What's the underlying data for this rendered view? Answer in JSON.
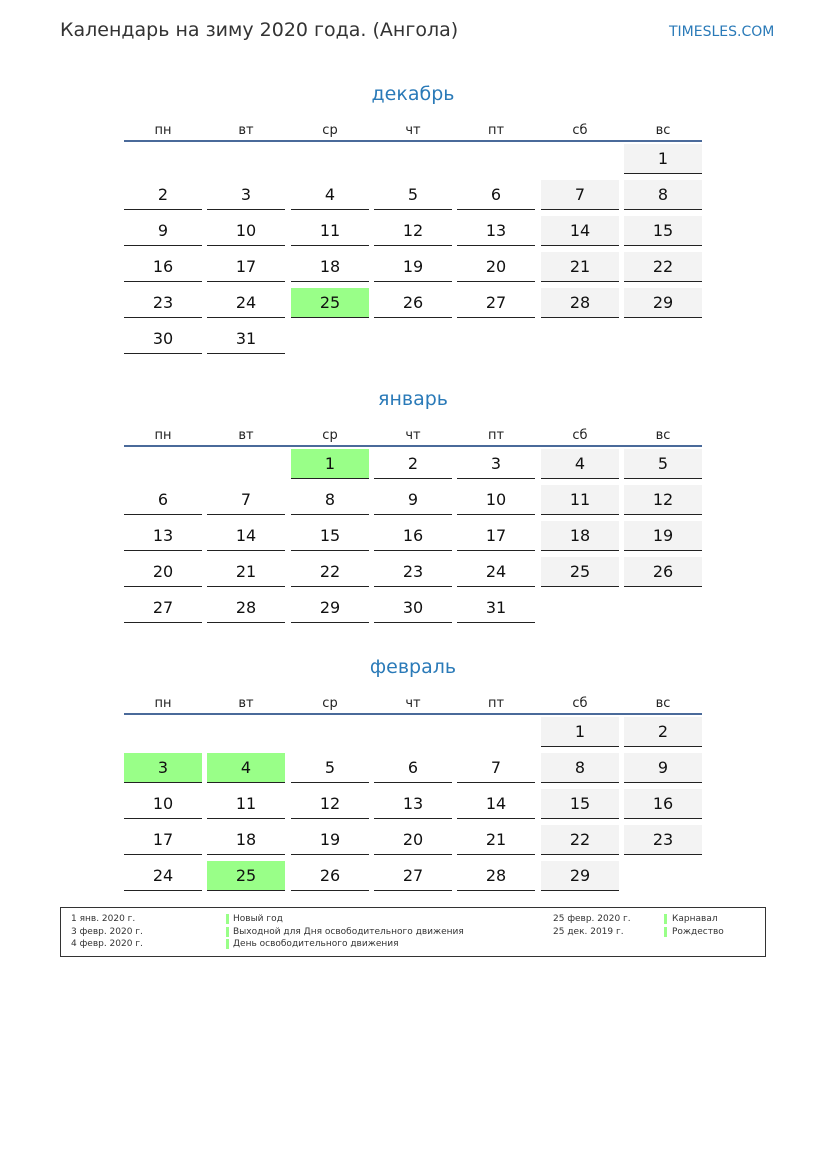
{
  "header": {
    "title": "Календарь на зиму 2020 года. (Ангола)",
    "site": "TIMESLES.COM"
  },
  "weekdays": [
    "пн",
    "вт",
    "ср",
    "чт",
    "пт",
    "сб",
    "вс"
  ],
  "colors": {
    "accent": "#2a7ab8",
    "holiday": "#99ff88",
    "weekend": "#f3f3f3",
    "rule": "#4a6a9a"
  },
  "months": [
    {
      "name": "декабрь",
      "weeks": [
        [
          null,
          null,
          null,
          null,
          null,
          null,
          1
        ],
        [
          2,
          3,
          4,
          5,
          6,
          7,
          8
        ],
        [
          9,
          10,
          11,
          12,
          13,
          14,
          15
        ],
        [
          16,
          17,
          18,
          19,
          20,
          21,
          22
        ],
        [
          23,
          24,
          25,
          26,
          27,
          28,
          29
        ],
        [
          30,
          31,
          null,
          null,
          null,
          null,
          null
        ]
      ],
      "holidays": [
        25
      ]
    },
    {
      "name": "январь",
      "weeks": [
        [
          null,
          null,
          1,
          2,
          3,
          4,
          5
        ],
        [
          6,
          7,
          8,
          9,
          10,
          11,
          12
        ],
        [
          13,
          14,
          15,
          16,
          17,
          18,
          19
        ],
        [
          20,
          21,
          22,
          23,
          24,
          25,
          26
        ],
        [
          27,
          28,
          29,
          30,
          31,
          null,
          null
        ]
      ],
      "holidays": [
        1
      ]
    },
    {
      "name": "февраль",
      "weeks": [
        [
          null,
          null,
          null,
          null,
          null,
          1,
          2
        ],
        [
          3,
          4,
          5,
          6,
          7,
          8,
          9
        ],
        [
          10,
          11,
          12,
          13,
          14,
          15,
          16
        ],
        [
          17,
          18,
          19,
          20,
          21,
          22,
          23
        ],
        [
          24,
          25,
          26,
          27,
          28,
          29,
          null
        ]
      ],
      "holidays": [
        3,
        4,
        25
      ]
    }
  ],
  "legend": {
    "left": [
      {
        "date": "1 янв. 2020 г.",
        "name": "Новый год"
      },
      {
        "date": "3 февр. 2020 г.",
        "name": "Выходной для Дня освободительного движения"
      },
      {
        "date": "4 февр. 2020 г.",
        "name": "День освободительного движения"
      }
    ],
    "right": [
      {
        "date": "25 февр. 2020 г.",
        "name": "Карнавал"
      },
      {
        "date": "25 дек. 2019 г.",
        "name": "Рождество"
      }
    ]
  }
}
